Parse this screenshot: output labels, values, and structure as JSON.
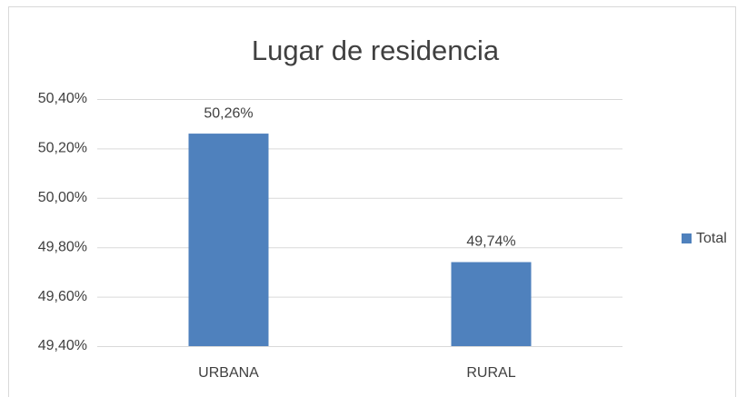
{
  "chart_data": {
    "type": "bar",
    "title": "Lugar de residencia",
    "categories": [
      "URBANA",
      "RURAL"
    ],
    "series": [
      {
        "name": "Total",
        "color": "#4f81bd",
        "values": [
          50.26,
          49.74
        ],
        "value_labels": [
          "50,26%",
          "49,74%"
        ]
      }
    ],
    "ylim": [
      49.4,
      50.4
    ],
    "yticks": [
      {
        "value": 49.4,
        "label": "49,40%"
      },
      {
        "value": 49.6,
        "label": "49,60%"
      },
      {
        "value": 49.8,
        "label": "49,80%"
      },
      {
        "value": 50.0,
        "label": "50,00%"
      },
      {
        "value": 50.2,
        "label": "50,20%"
      },
      {
        "value": 50.4,
        "label": "50,40%"
      }
    ],
    "grid": true,
    "legend": "right"
  }
}
